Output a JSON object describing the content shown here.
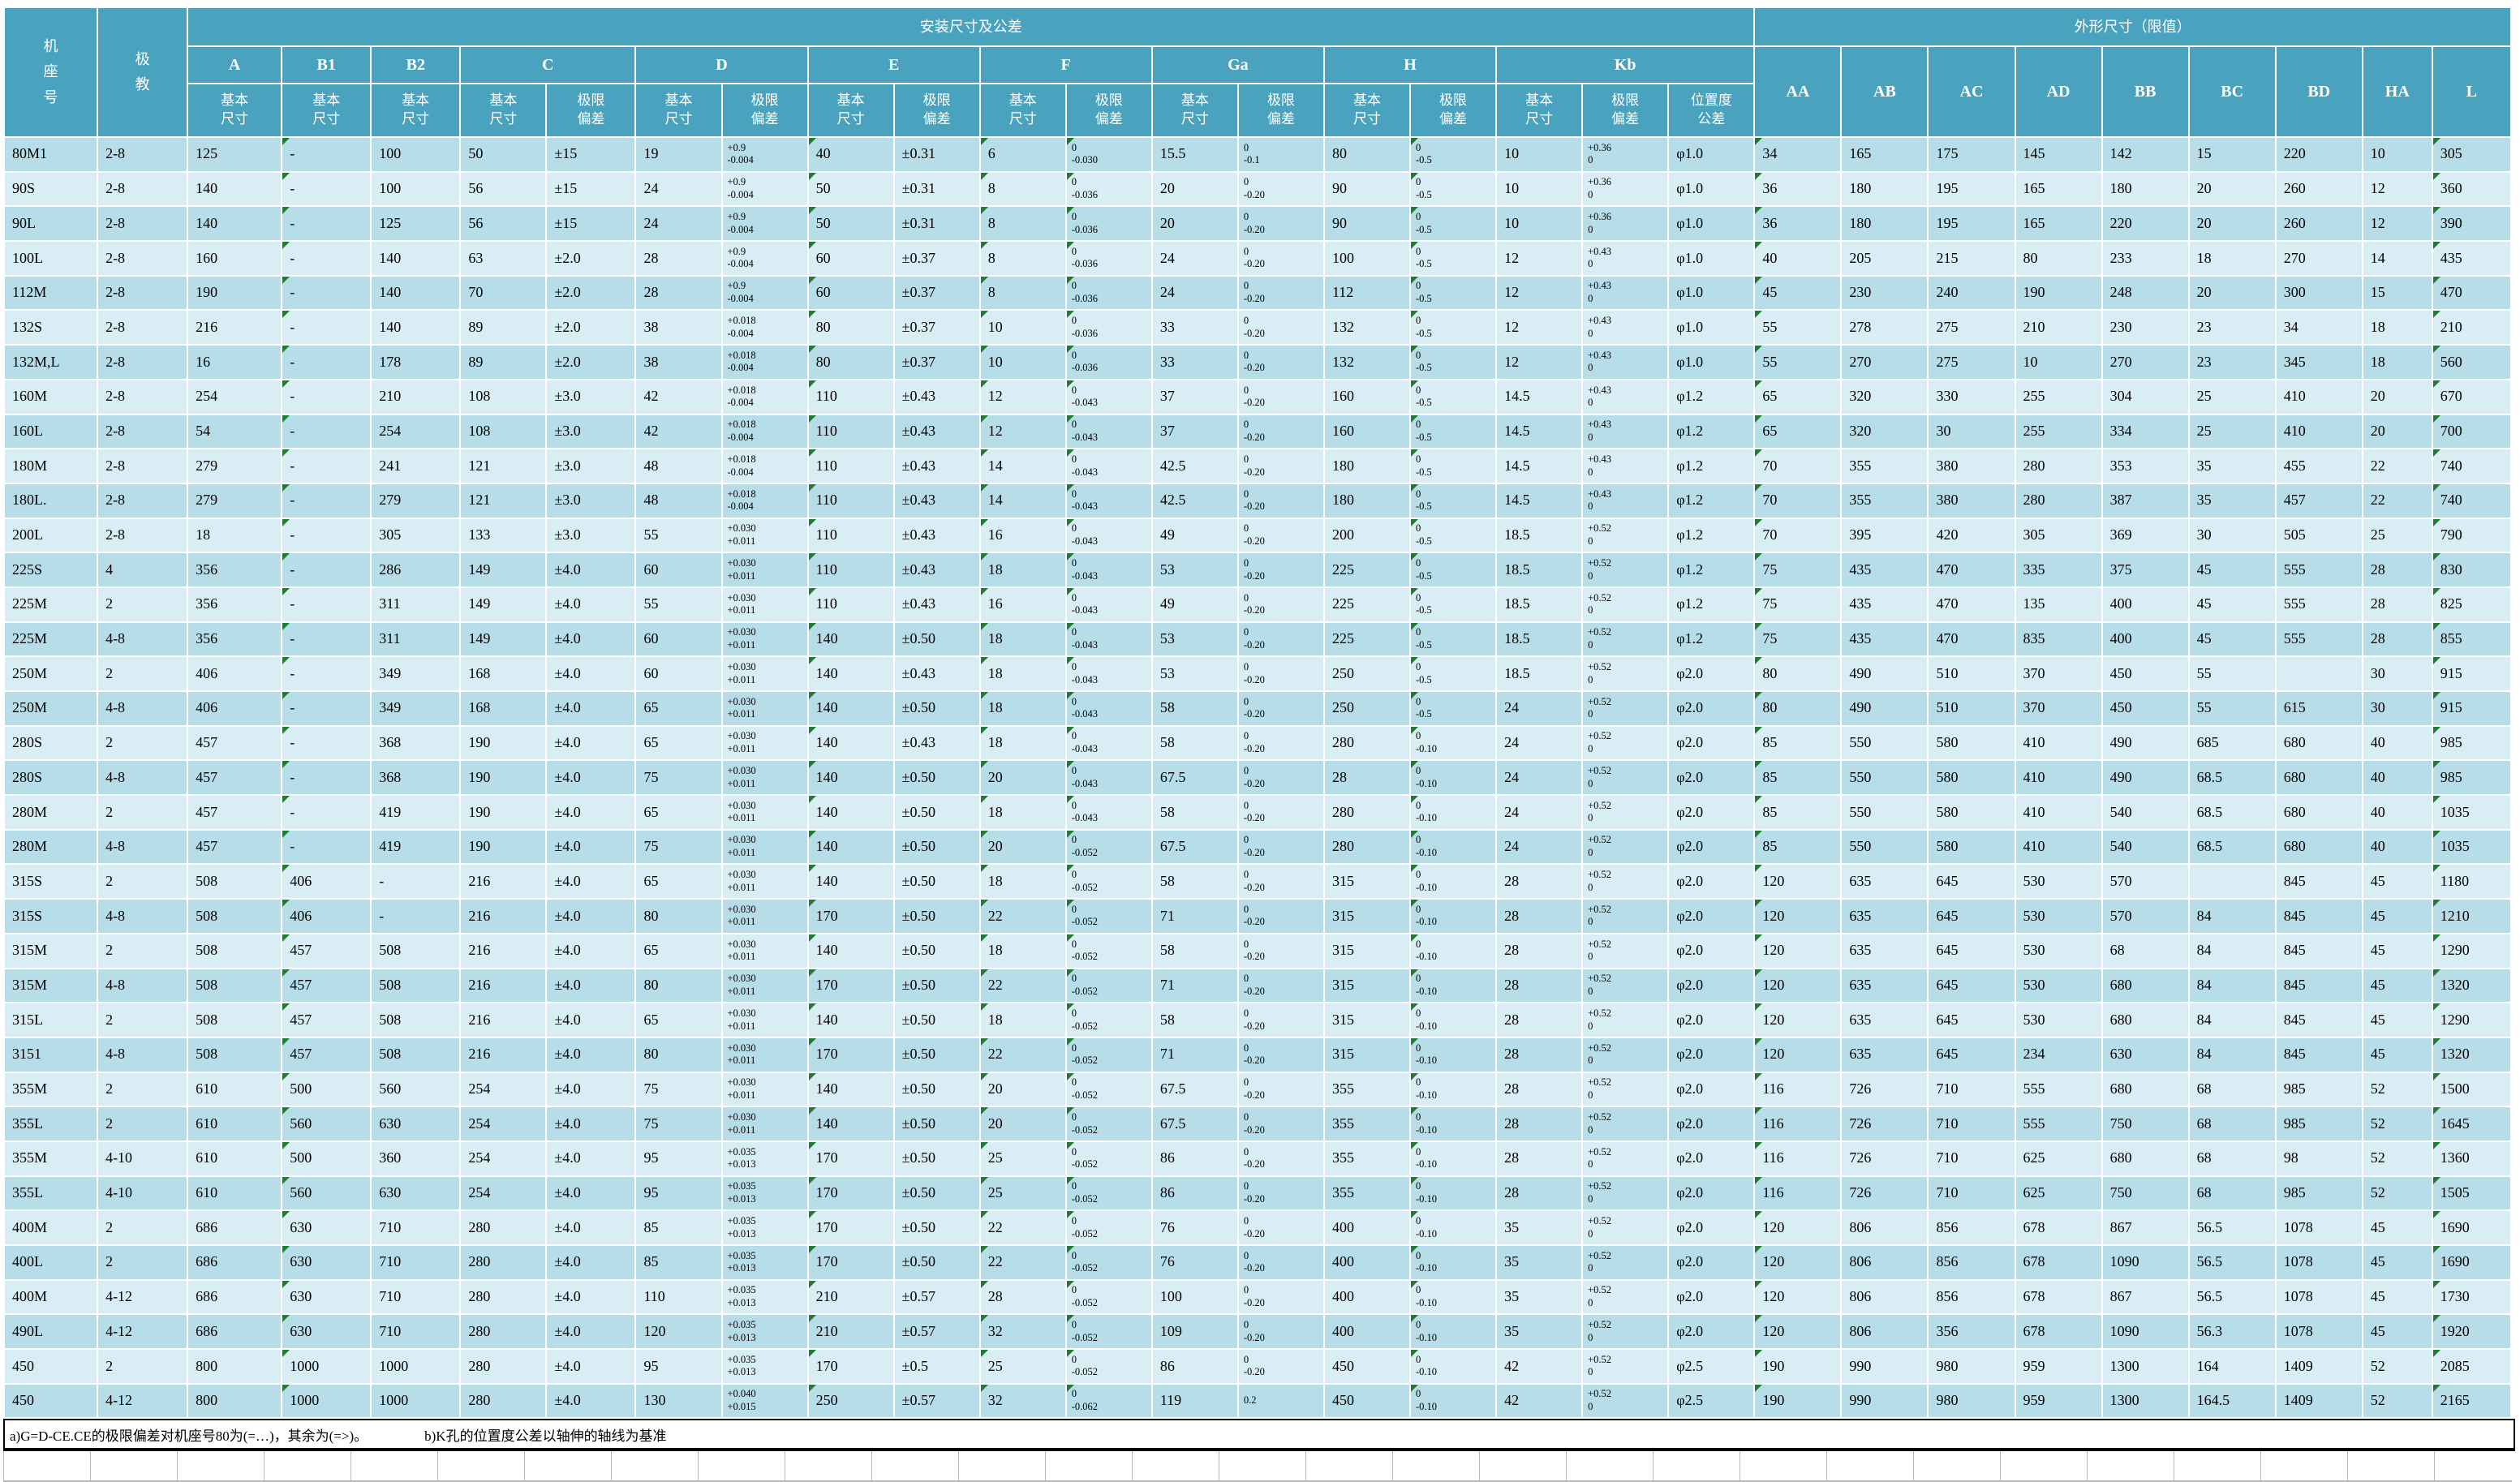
{
  "header": {
    "frame": "机座号",
    "poles": "极教",
    "install_group": "安装尺寸及公差",
    "outline_group": "外形尺寸（限值）",
    "basic": "基本\n尺寸",
    "dev": "极限\n偏差",
    "position": "位置度\n公差",
    "letters": {
      "a": "A",
      "b1": "B1",
      "b2": "B2",
      "c": "C",
      "d": "D",
      "e": "E",
      "f": "F",
      "ga": "Ga",
      "h": "H",
      "kb": "Kb",
      "aa": "AA",
      "ab": "AB",
      "ac": "AC",
      "ad": "AD",
      "bb": "BB",
      "bc": "BC",
      "bd": "BD",
      "ha": "HA",
      "l": "L"
    }
  },
  "comment_marker_columns": [
    3,
    9,
    11,
    12,
    16,
    20,
    28
  ],
  "colors": {
    "header_teal": "#4aa3be",
    "row_dark": "#b7dde9",
    "row_light": "#d9edf4",
    "marker_green": "#1e7d32",
    "gridline": "#ffffff"
  },
  "rows": [
    [
      "80M1",
      "2-8",
      "125",
      "-",
      "100",
      "50",
      "±15",
      "19",
      "+0.9\n-0.004",
      "40",
      "±0.31",
      "6",
      "0\n-0.030",
      "15.5",
      "0\n-0.1",
      "80",
      "0\n-0.5",
      "10",
      "+0.36\n0",
      "φ1.0",
      "34",
      "165",
      "175",
      "145",
      "142",
      "15",
      "220",
      "10",
      "305"
    ],
    [
      "90S",
      "2-8",
      "140",
      "-",
      "100",
      "56",
      "±15",
      "24",
      "+0.9\n-0.004",
      "50",
      "±0.31",
      "8",
      "0\n-0.036",
      "20",
      "0\n-0.20",
      "90",
      "0\n-0.5",
      "10",
      "+0.36\n0",
      "φ1.0",
      "36",
      "180",
      "195",
      "165",
      "180",
      "20",
      "260",
      "12",
      "360"
    ],
    [
      "90L",
      "2-8",
      "140",
      "-",
      "125",
      "56",
      "±15",
      "24",
      "+0.9\n-0.004",
      "50",
      "±0.31",
      "8",
      "0\n-0.036",
      "20",
      "0\n-0.20",
      "90",
      "0\n-0.5",
      "10",
      "+0.36\n0",
      "φ1.0",
      "36",
      "180",
      "195",
      "165",
      "220",
      "20",
      "260",
      "12",
      "390"
    ],
    [
      "100L",
      "2-8",
      "160",
      "-",
      "140",
      "63",
      "±2.0",
      "28",
      "+0.9\n-0.004",
      "60",
      "±0.37",
      "8",
      "0\n-0.036",
      "24",
      "0\n-0.20",
      "100",
      "0\n-0.5",
      "12",
      "+0.43\n0",
      "φ1.0",
      "40",
      "205",
      "215",
      "80",
      "233",
      "18",
      "270",
      "14",
      "435"
    ],
    [
      "112M",
      "2-8",
      "190",
      "-",
      "140",
      "70",
      "±2.0",
      "28",
      "+0.9\n-0.004",
      "60",
      "±0.37",
      "8",
      "0\n-0.036",
      "24",
      "0\n-0.20",
      "112",
      "0\n-0.5",
      "12",
      "+0.43\n0",
      "φ1.0",
      "45",
      "230",
      "240",
      "190",
      "248",
      "20",
      "300",
      "15",
      "470"
    ],
    [
      "132S",
      "2-8",
      "216",
      "-",
      "140",
      "89",
      "±2.0",
      "38",
      "+0.018\n-0.004",
      "80",
      "±0.37",
      "10",
      "0\n-0.036",
      "33",
      "0\n-0.20",
      "132",
      "0\n-0.5",
      "12",
      "+0.43\n0",
      "φ1.0",
      "55",
      "278",
      "275",
      "210",
      "230",
      "23",
      "34",
      "18",
      "210"
    ],
    [
      "132M,L",
      "2-8",
      "16",
      "-",
      "178",
      "89",
      "±2.0",
      "38",
      "+0.018\n-0.004",
      "80",
      "±0.37",
      "10",
      "0\n-0.036",
      "33",
      "0\n-0.20",
      "132",
      "0\n-0.5",
      "12",
      "+0.43\n0",
      "φ1.0",
      "55",
      "270",
      "275",
      "10",
      "270",
      "23",
      "345",
      "18",
      "560"
    ],
    [
      "160M",
      "2-8",
      "254",
      "-",
      "210",
      "108",
      "±3.0",
      "42",
      "+0.018\n-0.004",
      "110",
      "±0.43",
      "12",
      "0\n-0.043",
      "37",
      "0\n-0.20",
      "160",
      "0\n-0.5",
      "14.5",
      "+0.43\n0",
      "φ1.2",
      "65",
      "320",
      "330",
      "255",
      "304",
      "25",
      "410",
      "20",
      "670"
    ],
    [
      "160L",
      "2-8",
      "54",
      "-",
      "254",
      "108",
      "±3.0",
      "42",
      "+0.018\n-0.004",
      "110",
      "±0.43",
      "12",
      "0\n-0.043",
      "37",
      "0\n-0.20",
      "160",
      "0\n-0.5",
      "14.5",
      "+0.43\n0",
      "φ1.2",
      "65",
      "320",
      "30",
      "255",
      "334",
      "25",
      "410",
      "20",
      "700"
    ],
    [
      "180M",
      "2-8",
      "279",
      "-",
      "241",
      "121",
      "±3.0",
      "48",
      "+0.018\n-0.004",
      "110",
      "±0.43",
      "14",
      "0\n-0.043",
      "42.5",
      "0\n-0.20",
      "180",
      "0\n-0.5",
      "14.5",
      "+0.43\n0",
      "φ1.2",
      "70",
      "355",
      "380",
      "280",
      "353",
      "35",
      "455",
      "22",
      "740"
    ],
    [
      "180L.",
      "2-8",
      "279",
      "-",
      "279",
      "121",
      "±3.0",
      "48",
      "+0.018\n-0.004",
      "110",
      "±0.43",
      "14",
      "0\n-0.043",
      "42.5",
      "0\n-0.20",
      "180",
      "0\n-0.5",
      "14.5",
      "+0.43\n0",
      "φ1.2",
      "70",
      "355",
      "380",
      "280",
      "387",
      "35",
      "457",
      "22",
      "740"
    ],
    [
      "200L",
      "2-8",
      "18",
      "-",
      "305",
      "133",
      "±3.0",
      "55",
      "+0.030\n+0.011",
      "110",
      "±0.43",
      "16",
      "0\n-0.043",
      "49",
      "0\n-0.20",
      "200",
      "0\n-0.5",
      "18.5",
      "+0.52\n0",
      "φ1.2",
      "70",
      "395",
      "420",
      "305",
      "369",
      "30",
      "505",
      "25",
      "790"
    ],
    [
      "225S",
      "4",
      "356",
      "-",
      "286",
      "149",
      "±4.0",
      "60",
      "+0.030\n+0.011",
      "110",
      "±0.43",
      "18",
      "0\n-0.043",
      "53",
      "0\n-0.20",
      "225",
      "0\n-0.5",
      "18.5",
      "+0.52\n0",
      "φ1.2",
      "75",
      "435",
      "470",
      "335",
      "375",
      "45",
      "555",
      "28",
      "830"
    ],
    [
      "225M",
      "2",
      "356",
      "-",
      "311",
      "149",
      "±4.0",
      "55",
      "+0.030\n+0.011",
      "110",
      "±0.43",
      "16",
      "0\n-0.043",
      "49",
      "0\n-0.20",
      "225",
      "0\n-0.5",
      "18.5",
      "+0.52\n0",
      "φ1.2",
      "75",
      "435",
      "470",
      "135",
      "400",
      "45",
      "555",
      "28",
      "825"
    ],
    [
      "225M",
      "4-8",
      "356",
      "-",
      "311",
      "149",
      "±4.0",
      "60",
      "+0.030\n+0.011",
      "140",
      "±0.50",
      "18",
      "0\n-0.043",
      "53",
      "0\n-0.20",
      "225",
      "0\n-0.5",
      "18.5",
      "+0.52\n0",
      "φ1.2",
      "75",
      "435",
      "470",
      "835",
      "400",
      "45",
      "555",
      "28",
      "855"
    ],
    [
      "250M",
      "2",
      "406",
      "-",
      "349",
      "168",
      "±4.0",
      "60",
      "+0.030\n+0.011",
      "140",
      "±0.43",
      "18",
      "0\n-0.043",
      "53",
      "0\n-0.20",
      "250",
      "0\n-0.5",
      "18.5",
      "+0.52\n0",
      "φ2.0",
      "80",
      "490",
      "510",
      "370",
      "450",
      "55",
      "",
      "30",
      "915"
    ],
    [
      "250M",
      "4-8",
      "406",
      "-",
      "349",
      "168",
      "±4.0",
      "65",
      "+0.030\n+0.011",
      "140",
      "±0.50",
      "18",
      "0\n-0.043",
      "58",
      "0\n-0.20",
      "250",
      "0\n-0.5",
      "24",
      "+0.52\n0",
      "φ2.0",
      "80",
      "490",
      "510",
      "370",
      "450",
      "55",
      "615",
      "30",
      "915"
    ],
    [
      "280S",
      "2",
      "457",
      "-",
      "368",
      "190",
      "±4.0",
      "65",
      "+0.030\n+0.011",
      "140",
      "±0.43",
      "18",
      "0\n-0.043",
      "58",
      "0\n-0.20",
      "280",
      "0\n-0.10",
      "24",
      "+0.52\n0",
      "φ2.0",
      "85",
      "550",
      "580",
      "410",
      "490",
      "685",
      "680",
      "40",
      "985"
    ],
    [
      "280S",
      "4-8",
      "457",
      "-",
      "368",
      "190",
      "±4.0",
      "75",
      "+0.030\n+0.011",
      "140",
      "±0.50",
      "20",
      "0\n-0.043",
      "67.5",
      "0\n-0.20",
      "28",
      "0\n-0.10",
      "24",
      "+0.52\n0",
      "φ2.0",
      "85",
      "550",
      "580",
      "410",
      "490",
      "68.5",
      "680",
      "40",
      "985"
    ],
    [
      "280M",
      "2",
      "457",
      "-",
      "419",
      "190",
      "±4.0",
      "65",
      "+0.030\n+0.011",
      "140",
      "±0.50",
      "18",
      "0\n-0.043",
      "58",
      "0\n-0.20",
      "280",
      "0\n-0.10",
      "24",
      "+0.52\n0",
      "φ2.0",
      "85",
      "550",
      "580",
      "410",
      "540",
      "68.5",
      "680",
      "40",
      "1035"
    ],
    [
      "280M",
      "4-8",
      "457",
      "-",
      "419",
      "190",
      "±4.0",
      "75",
      "+0.030\n+0.011",
      "140",
      "±0.50",
      "20",
      "0\n-0.052",
      "67.5",
      "0\n-0.20",
      "280",
      "0\n-0.10",
      "24",
      "+0.52\n0",
      "φ2.0",
      "85",
      "550",
      "580",
      "410",
      "540",
      "68.5",
      "680",
      "40",
      "1035"
    ],
    [
      "315S",
      "2",
      "508",
      "406",
      "-",
      "216",
      "±4.0",
      "65",
      "+0.030\n+0.011",
      "140",
      "±0.50",
      "18",
      "0\n-0.052",
      "58",
      "0\n-0.20",
      "315",
      "0\n-0.10",
      "28",
      "+0.52\n0",
      "φ2.0",
      "120",
      "635",
      "645",
      "530",
      "570",
      "",
      "845",
      "45",
      "1180"
    ],
    [
      "315S",
      "4-8",
      "508",
      "406",
      "-",
      "216",
      "±4.0",
      "80",
      "+0.030\n+0.011",
      "170",
      "±0.50",
      "22",
      "0\n-0.052",
      "71",
      "0\n-0.20",
      "315",
      "0\n-0.10",
      "28",
      "+0.52\n0",
      "φ2.0",
      "120",
      "635",
      "645",
      "530",
      "570",
      "84",
      "845",
      "45",
      "1210"
    ],
    [
      "315M",
      "2",
      "508",
      "457",
      "508",
      "216",
      "±4.0",
      "65",
      "+0.030\n+0.011",
      "140",
      "±0.50",
      "18",
      "0\n-0.052",
      "58",
      "0\n-0.20",
      "315",
      "0\n-0.10",
      "28",
      "+0.52\n0",
      "φ2.0",
      "120",
      "635",
      "645",
      "530",
      "68",
      "84",
      "845",
      "45",
      "1290"
    ],
    [
      "315M",
      "4-8",
      "508",
      "457",
      "508",
      "216",
      "±4.0",
      "80",
      "+0.030\n+0.011",
      "170",
      "±0.50",
      "22",
      "0\n-0.052",
      "71",
      "0\n-0.20",
      "315",
      "0\n-0.10",
      "28",
      "+0.52\n0",
      "φ2.0",
      "120",
      "635",
      "645",
      "530",
      "680",
      "84",
      "845",
      "45",
      "1320"
    ],
    [
      "315L",
      "2",
      "508",
      "457",
      "508",
      "216",
      "±4.0",
      "65",
      "+0.030\n+0.011",
      "140",
      "±0.50",
      "18",
      "0\n-0.052",
      "58",
      "0\n-0.20",
      "315",
      "0\n-0.10",
      "28",
      "+0.52\n0",
      "φ2.0",
      "120",
      "635",
      "645",
      "530",
      "680",
      "84",
      "845",
      "45",
      "1290"
    ],
    [
      "3151",
      "4-8",
      "508",
      "457",
      "508",
      "216",
      "±4.0",
      "80",
      "+0.030\n+0.011",
      "170",
      "±0.50",
      "22",
      "0\n-0.052",
      "71",
      "0\n-0.20",
      "315",
      "0\n-0.10",
      "28",
      "+0.52\n0",
      "φ2.0",
      "120",
      "635",
      "645",
      "234",
      "630",
      "84",
      "845",
      "45",
      "1320"
    ],
    [
      "355M",
      "2",
      "610",
      "500",
      "560",
      "254",
      "±4.0",
      "75",
      "+0.030\n+0.011",
      "140",
      "±0.50",
      "20",
      "0\n-0.052",
      "67.5",
      "0\n-0.20",
      "355",
      "0\n-0.10",
      "28",
      "+0.52\n0",
      "φ2.0",
      "116",
      "726",
      "710",
      "555",
      "680",
      "68",
      "985",
      "52",
      "1500"
    ],
    [
      "355L",
      "2",
      "610",
      "560",
      "630",
      "254",
      "±4.0",
      "75",
      "+0.030\n+0.011",
      "140",
      "±0.50",
      "20",
      "0\n-0.052",
      "67.5",
      "0\n-0.20",
      "355",
      "0\n-0.10",
      "28",
      "+0.52\n0",
      "φ2.0",
      "116",
      "726",
      "710",
      "555",
      "750",
      "68",
      "985",
      "52",
      "1645"
    ],
    [
      "355M",
      "4-10",
      "610",
      "500",
      "360",
      "254",
      "±4.0",
      "95",
      "+0.035\n+0.013",
      "170",
      "±0.50",
      "25",
      "0\n-0.052",
      "86",
      "0\n-0.20",
      "355",
      "0\n-0.10",
      "28",
      "+0.52\n0",
      "φ2.0",
      "116",
      "726",
      "710",
      "625",
      "680",
      "68",
      "98",
      "52",
      "1360"
    ],
    [
      "355L",
      "4-10",
      "610",
      "560",
      "630",
      "254",
      "±4.0",
      "95",
      "+0.035\n+0.013",
      "170",
      "±0.50",
      "25",
      "0\n-0.052",
      "86",
      "0\n-0.20",
      "355",
      "0\n-0.10",
      "28",
      "+0.52\n0",
      "φ2.0",
      "116",
      "726",
      "710",
      "625",
      "750",
      "68",
      "985",
      "52",
      "1505"
    ],
    [
      "400M",
      "2",
      "686",
      "630",
      "710",
      "280",
      "±4.0",
      "85",
      "+0.035\n+0.013",
      "170",
      "±0.50",
      "22",
      "0\n-0.052",
      "76",
      "0\n-0.20",
      "400",
      "0\n-0.10",
      "35",
      "+0.52\n0",
      "φ2.0",
      "120",
      "806",
      "856",
      "678",
      "867",
      "56.5",
      "1078",
      "45",
      "1690"
    ],
    [
      "400L",
      "2",
      "686",
      "630",
      "710",
      "280",
      "±4.0",
      "85",
      "+0.035\n+0.013",
      "170",
      "±0.50",
      "22",
      "0\n-0.052",
      "76",
      "0\n-0.20",
      "400",
      "0\n-0.10",
      "35",
      "+0.52\n0",
      "φ2.0",
      "120",
      "806",
      "856",
      "678",
      "1090",
      "56.5",
      "1078",
      "45",
      "1690"
    ],
    [
      "400M",
      "4-12",
      "686",
      "630",
      "710",
      "280",
      "±4.0",
      "110",
      "+0.035\n+0.013",
      "210",
      "±0.57",
      "28",
      "0\n-0.052",
      "100",
      "0\n-0.20",
      "400",
      "0\n-0.10",
      "35",
      "+0.52\n0",
      "φ2.0",
      "120",
      "806",
      "856",
      "678",
      "867",
      "56.5",
      "1078",
      "45",
      "1730"
    ],
    [
      "490L",
      "4-12",
      "686",
      "630",
      "710",
      "280",
      "±4.0",
      "120",
      "+0.035\n+0.013",
      "210",
      "±0.57",
      "32",
      "0\n-0.052",
      "109",
      "0\n-0.20",
      "400",
      "0\n-0.10",
      "35",
      "+0.52\n0",
      "φ2.0",
      "120",
      "806",
      "356",
      "678",
      "1090",
      "56.3",
      "1078",
      "45",
      "1920"
    ],
    [
      "450",
      "2",
      "800",
      "1000",
      "1000",
      "280",
      "±4.0",
      "95",
      "+0.035\n+0.013",
      "170",
      "±0.5",
      "25",
      "0\n-0.052",
      "86",
      "0\n-0.20",
      "450",
      "0\n-0.10",
      "42",
      "+0.52\n0",
      "φ2.5",
      "190",
      "990",
      "980",
      "959",
      "1300",
      "164",
      "1409",
      "52",
      "2085"
    ],
    [
      "450",
      "4-12",
      "800",
      "1000",
      "1000",
      "280",
      "±4.0",
      "130",
      "+0.040\n+0.015",
      "250",
      "±0.57",
      "32",
      "0\n-0.062",
      "119",
      "0.2",
      "450",
      "0\n-0.10",
      "42",
      "+0.52\n0",
      "φ2.5",
      "190",
      "990",
      "980",
      "959",
      "1300",
      "164.5",
      "1409",
      "52",
      "2165"
    ]
  ],
  "footnote": {
    "a": "a)G=D-CE.CE的极限偏差对机座号80为(=…)，其余为(=>)。",
    "b": "b)K孔的位置度公差以轴伸的轴线为基准"
  }
}
